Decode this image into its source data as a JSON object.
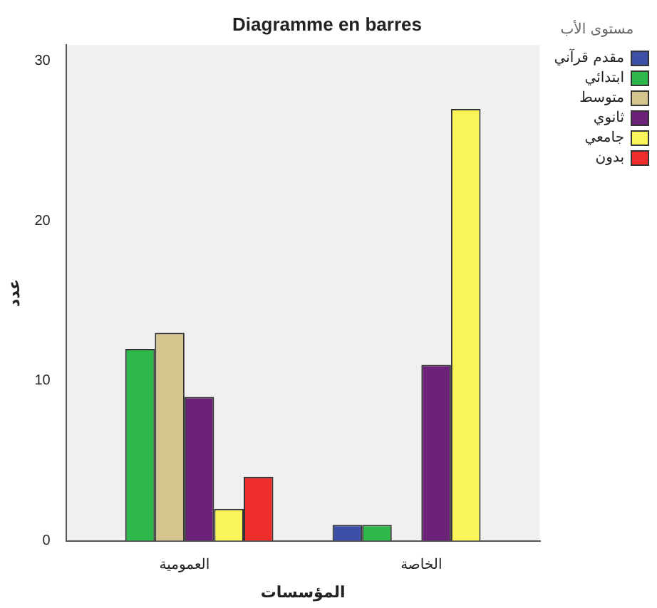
{
  "chart_data": {
    "type": "bar",
    "title": "Diagramme en barres",
    "xlabel": "المؤسسات",
    "ylabel": "عدد",
    "legend_title": "مستوى الأب",
    "categories": [
      "العمومية",
      "الخاصة"
    ],
    "series": [
      {
        "name": "مقدم قرآني",
        "color": "#3e4fa8",
        "values": [
          0,
          1
        ]
      },
      {
        "name": "ابتدائي",
        "color": "#2eb84b",
        "values": [
          12,
          1
        ]
      },
      {
        "name": "متوسط",
        "color": "#d4c58e",
        "values": [
          13,
          0
        ]
      },
      {
        "name": "ثانوي",
        "color": "#6c2278",
        "values": [
          9,
          11
        ]
      },
      {
        "name": "جامعي",
        "color": "#f8f45a",
        "values": [
          2,
          27
        ]
      },
      {
        "name": "بدون",
        "color": "#ef2d2d",
        "values": [
          4,
          0
        ]
      }
    ],
    "ylim": [
      0,
      31
    ],
    "yticks": [
      0,
      10,
      20,
      30
    ],
    "grid": false,
    "legend": "right"
  }
}
